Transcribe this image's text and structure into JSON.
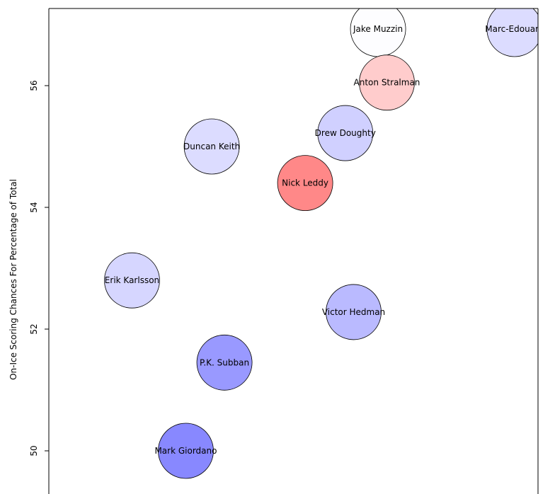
{
  "chart_data": {
    "type": "scatter",
    "title": "",
    "xlabel": "",
    "ylabel": "On-Ice Scoring Chances For Percentage of Total",
    "ylim": [
      49.6,
      57.3
    ],
    "yticks": [
      50,
      52,
      54,
      56
    ],
    "xlim": [
      0,
      100
    ],
    "grid": false,
    "points": [
      {
        "label": "Jake Muzzin",
        "x": 67.3,
        "y": 56.93,
        "color": "#fdfdff"
      },
      {
        "label": "Marc-Edouard",
        "x": 95.2,
        "y": 56.93,
        "color": "#dcdcff"
      },
      {
        "label": "Anton Stralman",
        "x": 69.1,
        "y": 56.05,
        "color": "#ffcccc"
      },
      {
        "label": "Drew Doughty",
        "x": 60.6,
        "y": 55.22,
        "color": "#d0d0ff"
      },
      {
        "label": "Duncan Keith",
        "x": 33.3,
        "y": 55.0,
        "color": "#dcdcff"
      },
      {
        "label": "Nick Leddy",
        "x": 52.4,
        "y": 54.4,
        "color": "#ff8888"
      },
      {
        "label": "Erik Karlsson",
        "x": 17.0,
        "y": 52.8,
        "color": "#d6d6ff"
      },
      {
        "label": "Victor Hedman",
        "x": 62.3,
        "y": 52.28,
        "color": "#babaff"
      },
      {
        "label": "P.K. Subban",
        "x": 35.9,
        "y": 51.45,
        "color": "#9999ff"
      },
      {
        "label": "Mark Giordano",
        "x": 28.0,
        "y": 50.0,
        "color": "#8888ff"
      }
    ]
  }
}
